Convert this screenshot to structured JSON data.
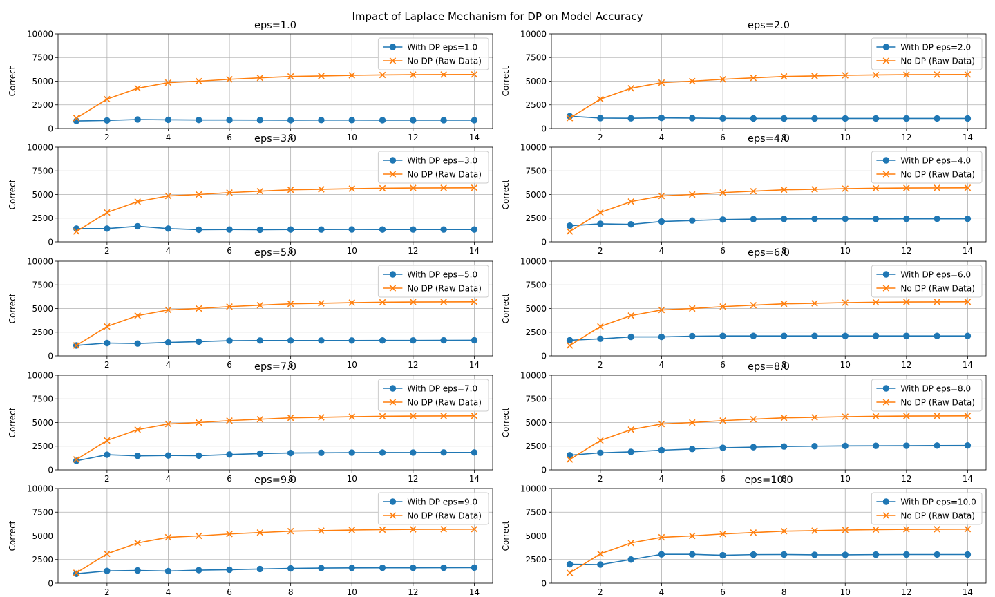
{
  "figure": {
    "suptitle": "Impact of Laplace Mechanism for DP on Model Accuracy"
  },
  "colors": {
    "dp": "#1f77b4",
    "raw": "#ff7f0e",
    "grid": "#b0b0b0"
  },
  "chart_data": [
    {
      "type": "line",
      "title": "eps=1.0",
      "ylabel": "Correct",
      "xlim": [
        0.4,
        14.6
      ],
      "ylim": [
        0,
        10000
      ],
      "xticks": [
        2,
        4,
        6,
        8,
        10,
        12,
        14
      ],
      "yticks": [
        0,
        2500,
        5000,
        7500,
        10000
      ],
      "grid": true,
      "legend": "upper right",
      "x": [
        1,
        2,
        3,
        4,
        5,
        6,
        7,
        8,
        9,
        10,
        11,
        12,
        13,
        14
      ],
      "series": [
        {
          "name": "With DP eps=1.0",
          "marker": "o",
          "values": [
            800,
            850,
            950,
            920,
            900,
            900,
            890,
            880,
            890,
            890,
            880,
            880,
            880,
            880
          ]
        },
        {
          "name": "No DP (Raw Data)",
          "marker": "x",
          "values": [
            1100,
            3100,
            4250,
            4850,
            5000,
            5200,
            5350,
            5500,
            5550,
            5620,
            5660,
            5690,
            5700,
            5710
          ]
        }
      ]
    },
    {
      "type": "line",
      "title": "eps=2.0",
      "ylabel": "Correct",
      "xlim": [
        0.4,
        14.6
      ],
      "ylim": [
        0,
        10000
      ],
      "xticks": [
        2,
        4,
        6,
        8,
        10,
        12,
        14
      ],
      "yticks": [
        0,
        2500,
        5000,
        7500,
        10000
      ],
      "grid": true,
      "legend": "upper right",
      "x": [
        1,
        2,
        3,
        4,
        5,
        6,
        7,
        8,
        9,
        10,
        11,
        12,
        13,
        14
      ],
      "series": [
        {
          "name": "With DP eps=2.0",
          "marker": "o",
          "values": [
            1300,
            1100,
            1080,
            1120,
            1100,
            1070,
            1060,
            1060,
            1060,
            1060,
            1060,
            1060,
            1060,
            1060
          ]
        },
        {
          "name": "No DP (Raw Data)",
          "marker": "x",
          "values": [
            1100,
            3100,
            4250,
            4850,
            5000,
            5200,
            5350,
            5500,
            5550,
            5620,
            5660,
            5690,
            5700,
            5710
          ]
        }
      ]
    },
    {
      "type": "line",
      "title": "eps=3.0",
      "ylabel": "Correct",
      "xlim": [
        0.4,
        14.6
      ],
      "ylim": [
        0,
        10000
      ],
      "xticks": [
        2,
        4,
        6,
        8,
        10,
        12,
        14
      ],
      "yticks": [
        0,
        2500,
        5000,
        7500,
        10000
      ],
      "grid": true,
      "legend": "upper right",
      "x": [
        1,
        2,
        3,
        4,
        5,
        6,
        7,
        8,
        9,
        10,
        11,
        12,
        13,
        14
      ],
      "series": [
        {
          "name": "With DP eps=3.0",
          "marker": "o",
          "values": [
            1400,
            1400,
            1650,
            1400,
            1280,
            1300,
            1280,
            1300,
            1300,
            1310,
            1300,
            1300,
            1300,
            1300
          ]
        },
        {
          "name": "No DP (Raw Data)",
          "marker": "x",
          "values": [
            1100,
            3100,
            4250,
            4850,
            5000,
            5200,
            5350,
            5500,
            5550,
            5620,
            5660,
            5690,
            5700,
            5710
          ]
        }
      ]
    },
    {
      "type": "line",
      "title": "eps=4.0",
      "ylabel": "Correct",
      "xlim": [
        0.4,
        14.6
      ],
      "ylim": [
        0,
        10000
      ],
      "xticks": [
        2,
        4,
        6,
        8,
        10,
        12,
        14
      ],
      "yticks": [
        0,
        2500,
        5000,
        7500,
        10000
      ],
      "grid": true,
      "legend": "upper right",
      "x": [
        1,
        2,
        3,
        4,
        5,
        6,
        7,
        8,
        9,
        10,
        11,
        12,
        13,
        14
      ],
      "series": [
        {
          "name": "With DP eps=4.0",
          "marker": "o",
          "values": [
            1700,
            1900,
            1850,
            2150,
            2250,
            2350,
            2400,
            2420,
            2430,
            2430,
            2420,
            2430,
            2430,
            2430
          ]
        },
        {
          "name": "No DP (Raw Data)",
          "marker": "x",
          "values": [
            1100,
            3100,
            4250,
            4850,
            5000,
            5200,
            5350,
            5500,
            5550,
            5620,
            5660,
            5690,
            5700,
            5710
          ]
        }
      ]
    },
    {
      "type": "line",
      "title": "eps=5.0",
      "ylabel": "Correct",
      "xlim": [
        0.4,
        14.6
      ],
      "ylim": [
        0,
        10000
      ],
      "xticks": [
        2,
        4,
        6,
        8,
        10,
        12,
        14
      ],
      "yticks": [
        0,
        2500,
        5000,
        7500,
        10000
      ],
      "grid": true,
      "legend": "upper right",
      "x": [
        1,
        2,
        3,
        4,
        5,
        6,
        7,
        8,
        9,
        10,
        11,
        12,
        13,
        14
      ],
      "series": [
        {
          "name": "With DP eps=5.0",
          "marker": "o",
          "values": [
            1100,
            1350,
            1300,
            1420,
            1500,
            1600,
            1620,
            1620,
            1620,
            1620,
            1630,
            1630,
            1640,
            1650
          ]
        },
        {
          "name": "No DP (Raw Data)",
          "marker": "x",
          "values": [
            1100,
            3100,
            4250,
            4850,
            5000,
            5200,
            5350,
            5500,
            5550,
            5620,
            5660,
            5690,
            5700,
            5710
          ]
        }
      ]
    },
    {
      "type": "line",
      "title": "eps=6.0",
      "ylabel": "Correct",
      "xlim": [
        0.4,
        14.6
      ],
      "ylim": [
        0,
        10000
      ],
      "xticks": [
        2,
        4,
        6,
        8,
        10,
        12,
        14
      ],
      "yticks": [
        0,
        2500,
        5000,
        7500,
        10000
      ],
      "grid": true,
      "legend": "upper right",
      "x": [
        1,
        2,
        3,
        4,
        5,
        6,
        7,
        8,
        9,
        10,
        11,
        12,
        13,
        14
      ],
      "series": [
        {
          "name": "With DP eps=6.0",
          "marker": "o",
          "values": [
            1650,
            1800,
            2000,
            2000,
            2080,
            2100,
            2100,
            2100,
            2100,
            2100,
            2100,
            2100,
            2100,
            2100
          ]
        },
        {
          "name": "No DP (Raw Data)",
          "marker": "x",
          "values": [
            1100,
            3100,
            4250,
            4850,
            5000,
            5200,
            5350,
            5500,
            5550,
            5620,
            5660,
            5690,
            5700,
            5710
          ]
        }
      ]
    },
    {
      "type": "line",
      "title": "eps=7.0",
      "ylabel": "Correct",
      "xlim": [
        0.4,
        14.6
      ],
      "ylim": [
        0,
        10000
      ],
      "xticks": [
        2,
        4,
        6,
        8,
        10,
        12,
        14
      ],
      "yticks": [
        0,
        2500,
        5000,
        7500,
        10000
      ],
      "grid": true,
      "legend": "upper right",
      "x": [
        1,
        2,
        3,
        4,
        5,
        6,
        7,
        8,
        9,
        10,
        11,
        12,
        13,
        14
      ],
      "series": [
        {
          "name": "With DP eps=7.0",
          "marker": "o",
          "values": [
            950,
            1600,
            1480,
            1520,
            1500,
            1620,
            1720,
            1780,
            1800,
            1820,
            1830,
            1830,
            1840,
            1840
          ]
        },
        {
          "name": "No DP (Raw Data)",
          "marker": "x",
          "values": [
            1100,
            3100,
            4250,
            4850,
            5000,
            5200,
            5350,
            5500,
            5550,
            5620,
            5660,
            5690,
            5700,
            5710
          ]
        }
      ]
    },
    {
      "type": "line",
      "title": "eps=8.0",
      "ylabel": "Correct",
      "xlim": [
        0.4,
        14.6
      ],
      "ylim": [
        0,
        10000
      ],
      "xticks": [
        2,
        4,
        6,
        8,
        10,
        12,
        14
      ],
      "yticks": [
        0,
        2500,
        5000,
        7500,
        10000
      ],
      "grid": true,
      "legend": "upper right",
      "x": [
        1,
        2,
        3,
        4,
        5,
        6,
        7,
        8,
        9,
        10,
        11,
        12,
        13,
        14
      ],
      "series": [
        {
          "name": "With DP eps=8.0",
          "marker": "o",
          "values": [
            1550,
            1800,
            1900,
            2080,
            2200,
            2330,
            2400,
            2470,
            2500,
            2530,
            2540,
            2550,
            2570,
            2580
          ]
        },
        {
          "name": "No DP (Raw Data)",
          "marker": "x",
          "values": [
            1100,
            3100,
            4250,
            4850,
            5000,
            5200,
            5350,
            5500,
            5550,
            5620,
            5660,
            5690,
            5700,
            5710
          ]
        }
      ]
    },
    {
      "type": "line",
      "title": "eps=9.0",
      "ylabel": "Correct",
      "xlim": [
        0.4,
        14.6
      ],
      "ylim": [
        0,
        10000
      ],
      "xticks": [
        2,
        4,
        6,
        8,
        10,
        12,
        14
      ],
      "yticks": [
        0,
        2500,
        5000,
        7500,
        10000
      ],
      "grid": true,
      "legend": "upper right",
      "x": [
        1,
        2,
        3,
        4,
        5,
        6,
        7,
        8,
        9,
        10,
        11,
        12,
        13,
        14
      ],
      "series": [
        {
          "name": "With DP eps=9.0",
          "marker": "o",
          "values": [
            1000,
            1300,
            1350,
            1280,
            1380,
            1430,
            1500,
            1570,
            1600,
            1620,
            1630,
            1630,
            1640,
            1650
          ]
        },
        {
          "name": "No DP (Raw Data)",
          "marker": "x",
          "values": [
            1100,
            3100,
            4250,
            4850,
            5000,
            5200,
            5350,
            5500,
            5550,
            5620,
            5660,
            5690,
            5700,
            5710
          ]
        }
      ]
    },
    {
      "type": "line",
      "title": "eps=10.0",
      "ylabel": "Correct",
      "xlim": [
        0.4,
        14.6
      ],
      "ylim": [
        0,
        10000
      ],
      "xticks": [
        2,
        4,
        6,
        8,
        10,
        12,
        14
      ],
      "yticks": [
        0,
        2500,
        5000,
        7500,
        10000
      ],
      "grid": true,
      "legend": "upper right",
      "x": [
        1,
        2,
        3,
        4,
        5,
        6,
        7,
        8,
        9,
        10,
        11,
        12,
        13,
        14
      ],
      "series": [
        {
          "name": "With DP eps=10.0",
          "marker": "o",
          "values": [
            2000,
            1970,
            2500,
            3050,
            3050,
            2950,
            3020,
            3030,
            3000,
            3000,
            3020,
            3030,
            3030,
            3030
          ]
        },
        {
          "name": "No DP (Raw Data)",
          "marker": "x",
          "values": [
            1100,
            3100,
            4250,
            4850,
            5000,
            5200,
            5350,
            5500,
            5550,
            5620,
            5660,
            5690,
            5700,
            5710
          ]
        }
      ]
    }
  ]
}
